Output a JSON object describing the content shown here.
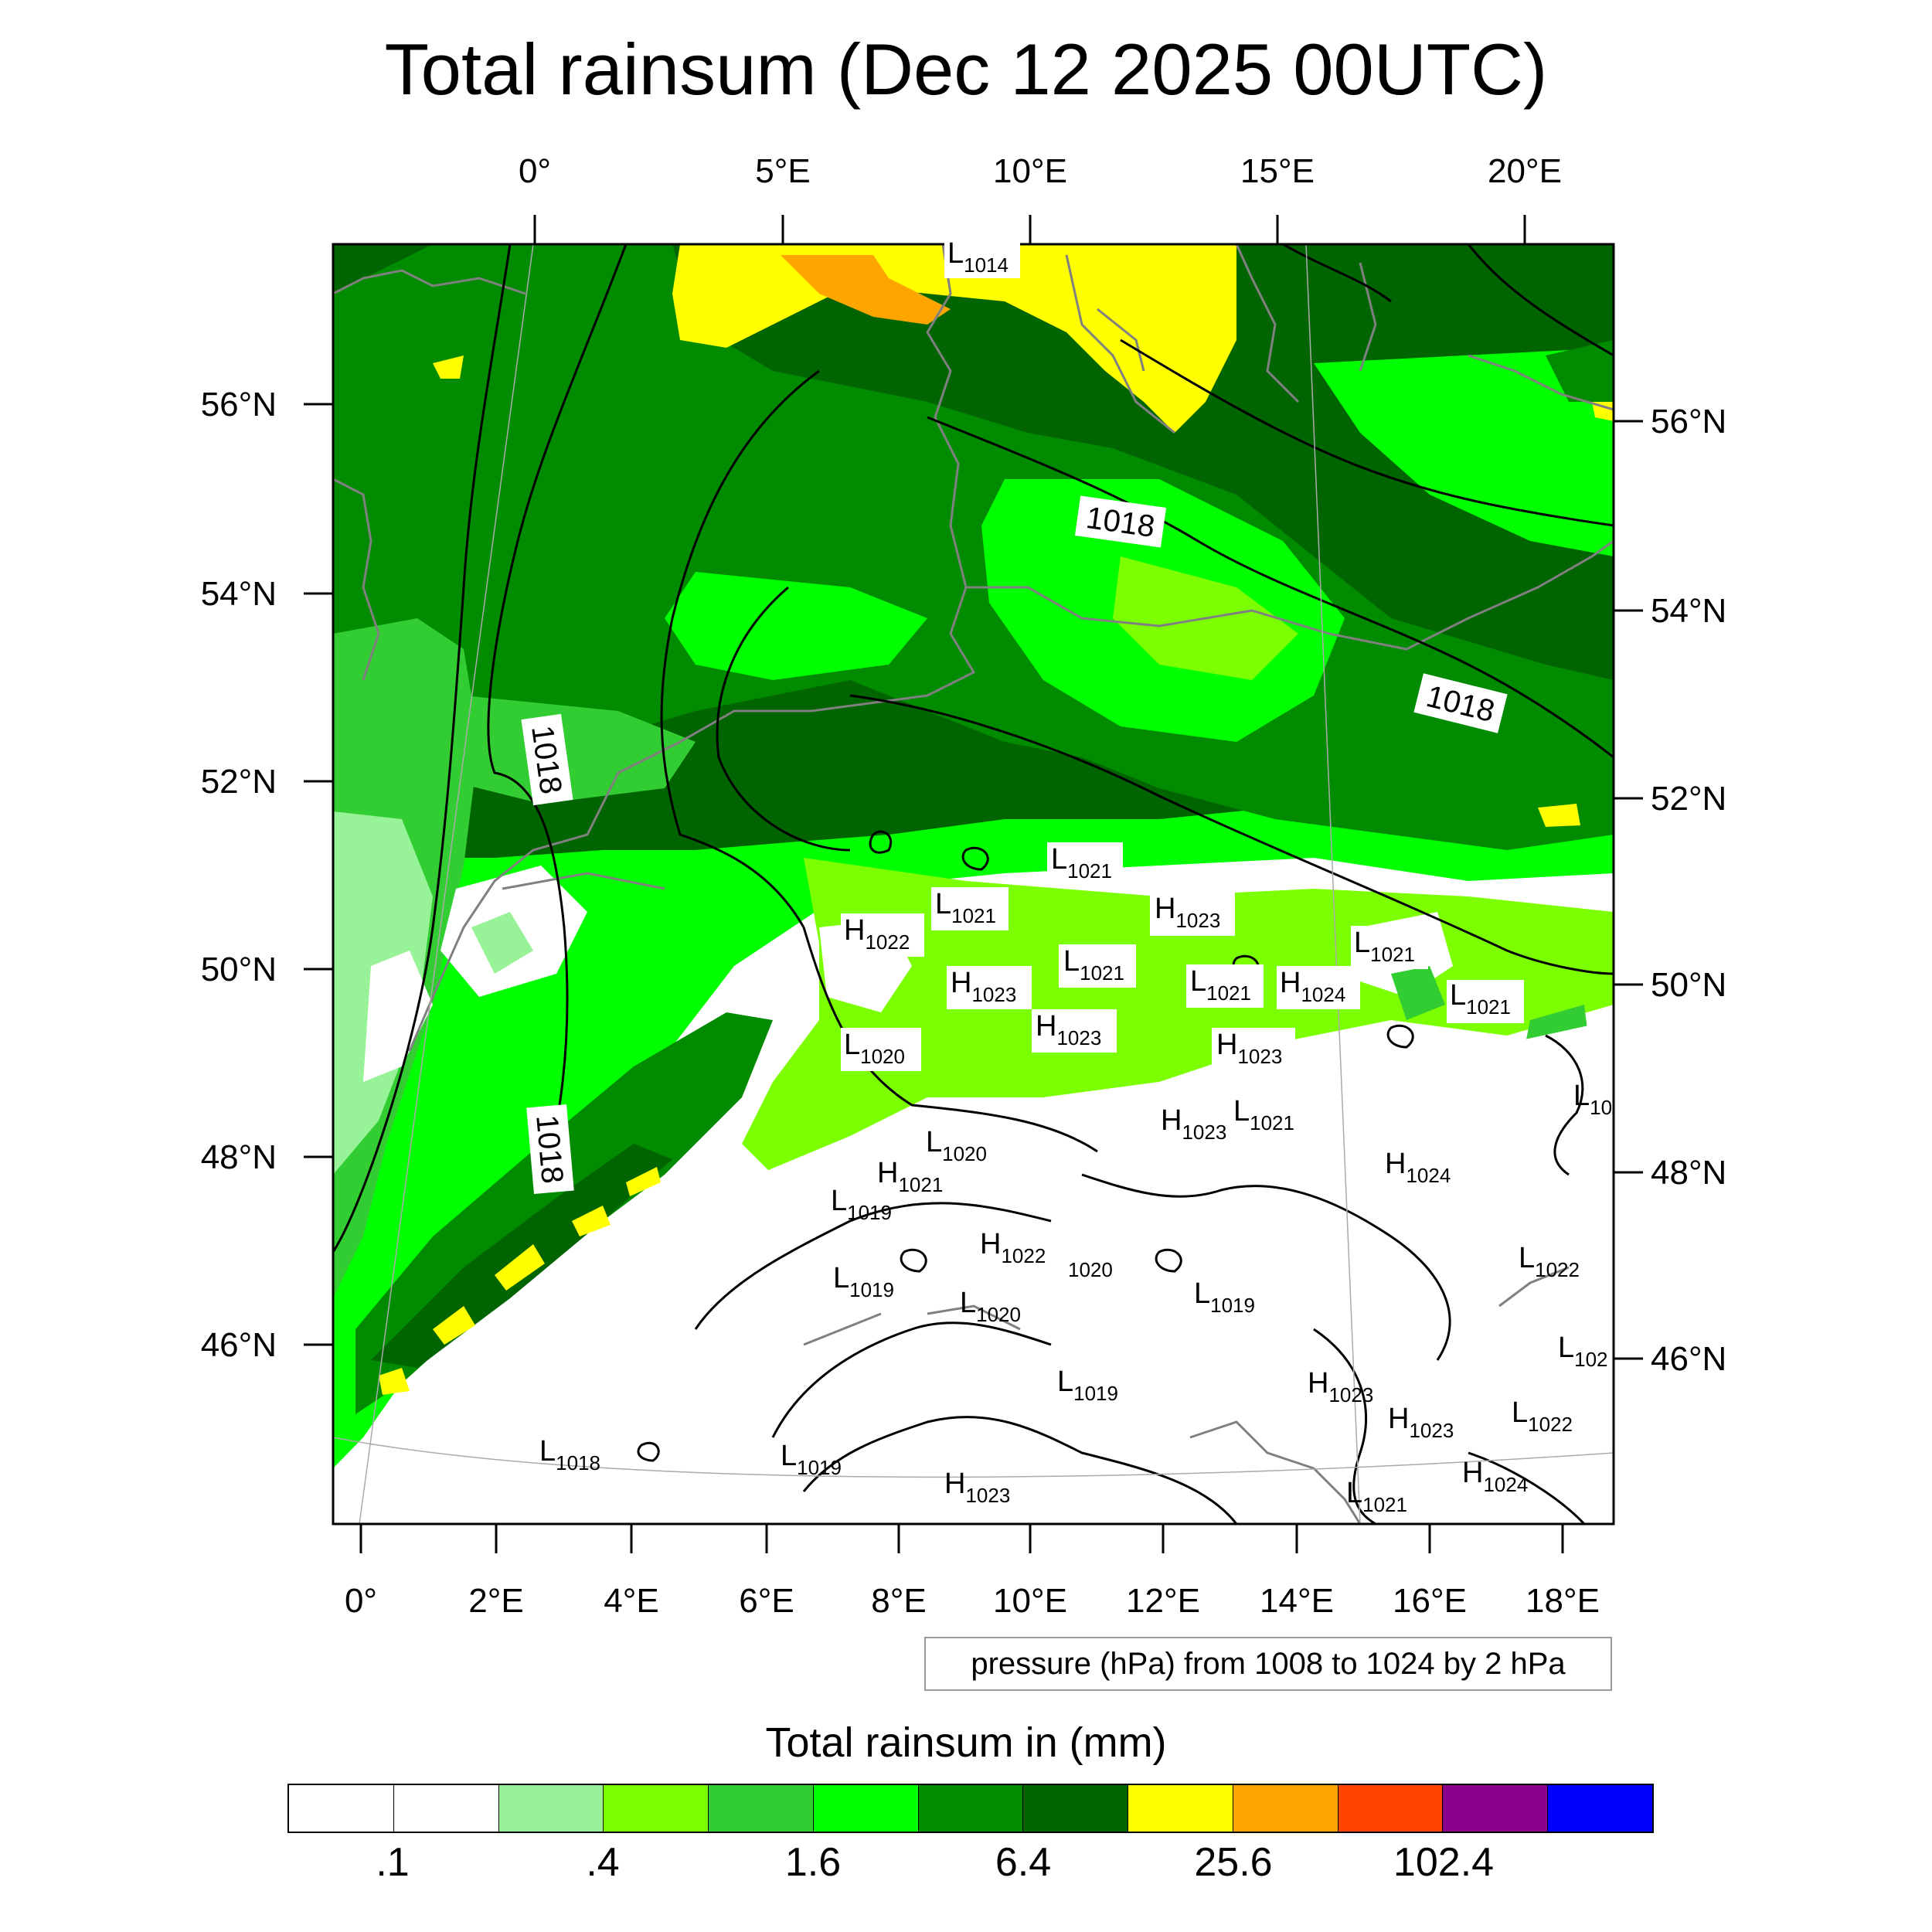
{
  "title": "Total rainsum (Dec 12 2025 00UTC)",
  "info_box": "pressure (hPa) from 1008 to 1024 by 2 hPa",
  "colorbar": {
    "title": "Total rainsum in (mm)",
    "colors": [
      "#ffffff",
      "#ffffff",
      "#98f398",
      "#7cff00",
      "#32cd32",
      "#00ff00",
      "#008b00",
      "#006400",
      "#ffff00",
      "#ffa500",
      "#ff4500",
      "#8b008b",
      "#0000ff"
    ],
    "labels": [
      ".1",
      ".4",
      "1.6",
      "6.4",
      "25.6",
      "102.4"
    ]
  },
  "axes": {
    "top_lon": [
      "0°",
      "5°E",
      "10°E",
      "15°E",
      "20°E"
    ],
    "bottom_lon": [
      "0°",
      "2°E",
      "4°E",
      "6°E",
      "8°E",
      "10°E",
      "12°E",
      "14°E",
      "16°E",
      "18°E"
    ],
    "left_lat": [
      "56°N",
      "54°N",
      "52°N",
      "50°N",
      "48°N",
      "46°N"
    ],
    "right_lat": [
      "56°N",
      "54°N",
      "52°N",
      "50°N",
      "48°N",
      "46°N"
    ]
  },
  "isobar_labels": [
    "1018",
    "1018",
    "1018",
    "1018"
  ],
  "pressure_centers": [
    {
      "type": "L",
      "value": "1014"
    },
    {
      "type": "L",
      "value": "1021"
    },
    {
      "type": "L",
      "value": "1021"
    },
    {
      "type": "H",
      "value": "1023"
    },
    {
      "type": "H",
      "value": "1022"
    },
    {
      "type": "L",
      "value": "1021"
    },
    {
      "type": "H",
      "value": "1023"
    },
    {
      "type": "L",
      "value": "1021"
    },
    {
      "type": "H",
      "value": "1024"
    },
    {
      "type": "L",
      "value": "1021"
    },
    {
      "type": "L",
      "value": "1021"
    },
    {
      "type": "H",
      "value": "1023"
    },
    {
      "type": "L",
      "value": "1020"
    },
    {
      "type": "H",
      "value": "1023"
    },
    {
      "type": "L",
      "value": "1020"
    },
    {
      "type": "H",
      "value": "1023"
    },
    {
      "type": "L",
      "value": "1021"
    },
    {
      "type": "H",
      "value": "1021"
    },
    {
      "type": "L",
      "value": "1019"
    },
    {
      "type": "H",
      "value": "1024"
    },
    {
      "type": "L",
      "value": "10"
    },
    {
      "type": "H",
      "value": "1022"
    },
    {
      "type": "L",
      "value": "1019"
    },
    {
      "type": "L",
      "value": "1020"
    },
    {
      "type": "L",
      "value": "1019"
    },
    {
      "type": "L",
      "value": "1022"
    },
    {
      "type": "L",
      "value": "102"
    },
    {
      "type": "L",
      "value": "1019"
    },
    {
      "type": "H",
      "value": "1023"
    },
    {
      "type": "H",
      "value": "1023"
    },
    {
      "type": "L",
      "value": "1022"
    },
    {
      "type": "L",
      "value": "1018"
    },
    {
      "type": "L",
      "value": "1019"
    },
    {
      "type": "H",
      "value": "1023"
    },
    {
      "type": "H",
      "value": "1024"
    },
    {
      "type": "L",
      "value": "1021"
    }
  ],
  "stray_labels": [
    "1020"
  ]
}
